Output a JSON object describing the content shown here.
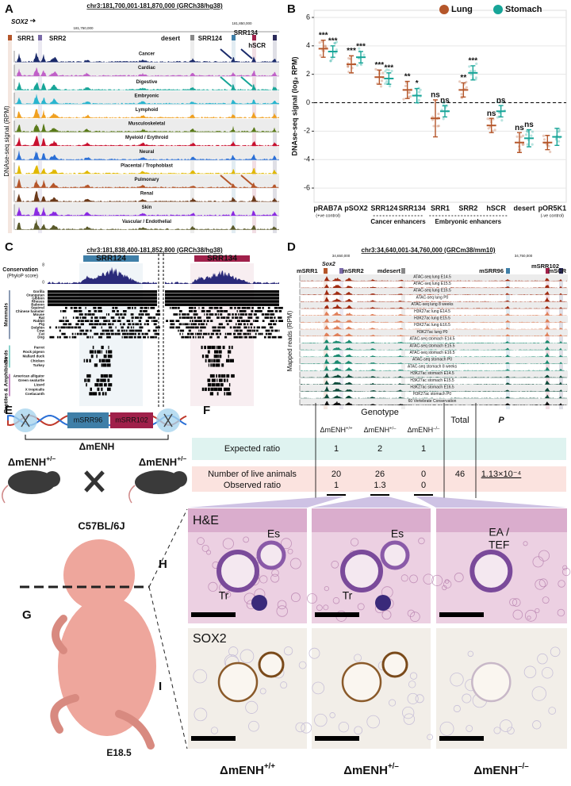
{
  "panel_labels": [
    "A",
    "B",
    "C",
    "D",
    "E",
    "F",
    "G",
    "H",
    "I"
  ],
  "panel_a": {
    "title": "chr3:181,700,001-181,870,000 (GRCh38/hg38)",
    "ticks": [
      "181,750,000",
      "181,850,000"
    ],
    "gene": "SOX2",
    "regions": [
      {
        "name": "SRR1",
        "color": "#b5562a"
      },
      {
        "name": "SRR2",
        "color": "#7a6aa8"
      },
      {
        "name": "desert",
        "color": "#888888"
      },
      {
        "name": "SRR124",
        "color": "#3f7fa8"
      },
      {
        "name": "SRR134",
        "color": "#a0204a"
      },
      {
        "name": "hSCR",
        "color": "#2a2a5a"
      }
    ],
    "y_label": "DNAse-seq signal (RPM)",
    "tracks": [
      {
        "name": "Cancer",
        "color": "#1a2a6a"
      },
      {
        "name": "Cardiac",
        "color": "#c060c8"
      },
      {
        "name": "Digestive",
        "color": "#17a598"
      },
      {
        "name": "Embryonic",
        "color": "#2ab5cf"
      },
      {
        "name": "Lymphoid",
        "color": "#f0a020"
      },
      {
        "name": "Musculoskeletal",
        "color": "#5a7a1a"
      },
      {
        "name": "Myeloid / Erythroid",
        "color": "#c8102e"
      },
      {
        "name": "Neural",
        "color": "#2a6fd6"
      },
      {
        "name": "Placental / Trophoblast",
        "color": "#e0b800"
      },
      {
        "name": "Pulmonary",
        "color": "#b5562a"
      },
      {
        "name": "Renal",
        "color": "#6b3a1a"
      },
      {
        "name": "Skin",
        "color": "#8a2be2"
      },
      {
        "name": "Vascular / Endothelial",
        "color": "#5a5a2a"
      }
    ]
  },
  "chart_data": {
    "type": "dot",
    "y_label": "DNAse-seq signal (log₂ RPM)",
    "categories": [
      "pRAB7A",
      "pSOX2",
      "SRR124",
      "SRR134",
      "SRR1",
      "SRR2",
      "hSCR",
      "desert",
      "pOR5K1"
    ],
    "category_notes": {
      "pRAB7A": "(+ve control)",
      "pOR5K1": "(-ve control)"
    },
    "groups": [
      {
        "name": "Cancer enhancers",
        "categories": [
          "SRR124",
          "SRR134"
        ]
      },
      {
        "name": "Embryonic enhancers",
        "categories": [
          "SRR1",
          "SRR2",
          "hSCR"
        ]
      }
    ],
    "series": [
      {
        "name": "Lung",
        "color": "#b5562a",
        "values": [
          3.8,
          2.7,
          1.8,
          0.9,
          -1.1,
          0.9,
          -1.6,
          -2.8,
          -2.8
        ],
        "errors": [
          0.6,
          0.6,
          0.5,
          0.6,
          1.3,
          0.5,
          0.5,
          0.7,
          0.5
        ],
        "significance": [
          "***",
          "***",
          "***",
          "**",
          "ns",
          "**",
          "ns",
          "ns",
          null
        ]
      },
      {
        "name": "Stomach",
        "color": "#17a598",
        "values": [
          3.6,
          3.2,
          1.7,
          0.5,
          -0.6,
          2.1,
          -0.6,
          -2.5,
          -2.4
        ],
        "errors": [
          0.4,
          0.4,
          0.4,
          0.5,
          0.4,
          0.5,
          0.4,
          0.6,
          0.6
        ],
        "significance": [
          "***",
          "***",
          "***",
          "*",
          "ns",
          "***",
          "ns",
          "ns",
          null
        ]
      }
    ],
    "ylim": [
      -7,
      6.5
    ],
    "yticks": [
      -6,
      -4,
      -2,
      0,
      2,
      4,
      6
    ],
    "grid": true,
    "legend": "top-right"
  },
  "panel_c": {
    "title": "chr3:181,838,400-181,852,800 (GRCh38/hg38)",
    "regions": [
      "SRR124",
      "SRR134"
    ],
    "conservation": "Conservation",
    "conservation_unit": "(PhyloP score)",
    "scale": [
      "8",
      "0"
    ],
    "groups": [
      {
        "name": "Mammals",
        "color": "#1a3a6a",
        "species": [
          "Gorilla",
          "Orangutan",
          "Gibbon",
          "Rhesus",
          "Baboon",
          "Squirrel",
          "Chinese hamster",
          "Mouse",
          "Rat",
          "Rabbit",
          "Pig",
          "Dolphin",
          "Cow",
          "Cat",
          "Dog"
        ]
      },
      {
        "name": "Birds",
        "color": "#17a598",
        "species": [
          "Parrot",
          "Rock pigeon",
          "Mallard duck",
          "Chicken",
          "Turkey"
        ]
      },
      {
        "name": "Reptiles & Amphibians",
        "color": "#8a1a8a",
        "species": [
          "American alligator",
          "Green seaturtle",
          "Lizard",
          "X tropicalis",
          "Coelacanth"
        ]
      }
    ]
  },
  "panel_d": {
    "title": "chr3:34,640,001-34,760,000 (GRCm38/mm10)",
    "ticks": [
      "34,650,000",
      "34,750,000"
    ],
    "gene": "Sox2",
    "y_label": "Mapped reads (RPM)",
    "regions": [
      {
        "name": "mSRR1",
        "color": "#b5562a"
      },
      {
        "name": "mSRR2",
        "color": "#7a6aa8"
      },
      {
        "name": "mdesert",
        "color": "#888888"
      },
      {
        "name": "mSRR96",
        "color": "#3f7fa8"
      },
      {
        "name": "mSRR102",
        "color": "#a0204a"
      },
      {
        "name": "mSCR",
        "color": "#2a2a5a"
      }
    ],
    "tracks": [
      {
        "name": "ATAC-seq lung E14.5",
        "color": "#a02a10"
      },
      {
        "name": "ATAC-seq lung E15.5",
        "color": "#a02a10"
      },
      {
        "name": "ATAC-seq lung E16.5",
        "color": "#a02a10"
      },
      {
        "name": "ATAC-seq lung P0",
        "color": "#a02a10"
      },
      {
        "name": "ATAC-seq lung 8 weeks",
        "color": "#a02a10"
      },
      {
        "name": "H3K27ac lung E14.5",
        "color": "#e0805a"
      },
      {
        "name": "H3K27ac lung E15.5",
        "color": "#e0805a"
      },
      {
        "name": "H3K27ac lung E16.5",
        "color": "#e0805a"
      },
      {
        "name": "H3K27ac lung P0",
        "color": "#e0805a"
      },
      {
        "name": "ATAC-seq stomach E14.5",
        "color": "#1a8a70"
      },
      {
        "name": "ATAC-seq stomach E15.5",
        "color": "#1a8a70"
      },
      {
        "name": "ATAC-seq stomach E16.5",
        "color": "#1a8a70"
      },
      {
        "name": "ATAC-seq stomach P0",
        "color": "#1a8a70"
      },
      {
        "name": "ATAC-seq stomach 8 weeks",
        "color": "#1a8a70"
      },
      {
        "name": "H3K27ac stomach E14.5",
        "color": "#0d4a3a"
      },
      {
        "name": "H3K27ac stomach E15.5",
        "color": "#0d4a3a"
      },
      {
        "name": "H3K27ac stomach E16.5",
        "color": "#0d4a3a"
      },
      {
        "name": "H3K27ac stomach P0",
        "color": "#0d4a3a"
      },
      {
        "name": "60 Vertebrate Conservation",
        "color": "#111111"
      }
    ]
  },
  "panel_e": {
    "elements": [
      "mSRR96",
      "mSRR102"
    ],
    "deletion": "ΔmENH",
    "parent": {
      "base": "ΔmENH",
      "sup": "+/–"
    }
  },
  "panel_f": {
    "header": "Genotype",
    "total": "Total",
    "p": "P",
    "genotypes": [
      {
        "base": "ΔmENH",
        "sup": "+/+"
      },
      {
        "base": "ΔmENH",
        "sup": "+/–"
      },
      {
        "base": "ΔmENH",
        "sup": "–/–"
      }
    ],
    "rows": [
      {
        "label": "Expected ratio",
        "values": [
          "1",
          "2",
          "1"
        ]
      },
      {
        "label": "Number of live animals",
        "values": [
          "20",
          "26",
          "0"
        ],
        "total": "46",
        "p": "1.13×10⁻⁴"
      },
      {
        "label": "Observed ratio",
        "values": [
          "1",
          "1.3",
          "0"
        ]
      }
    ]
  },
  "panel_g": {
    "strain": "C57BL/6J",
    "stage": "E18.5"
  },
  "panel_h": {
    "stain": "H&E",
    "labels": [
      [
        "Es",
        "Tr"
      ],
      [
        "Es",
        "Tr"
      ],
      [
        "EA /",
        "TEF"
      ]
    ]
  },
  "panel_i": {
    "stain": "SOX2"
  },
  "genotypes": [
    {
      "base": "ΔmENH",
      "sup": "+/+"
    },
    {
      "base": "ΔmENH",
      "sup": "+/–"
    },
    {
      "base": "ΔmENH",
      "sup": "–/–"
    }
  ]
}
